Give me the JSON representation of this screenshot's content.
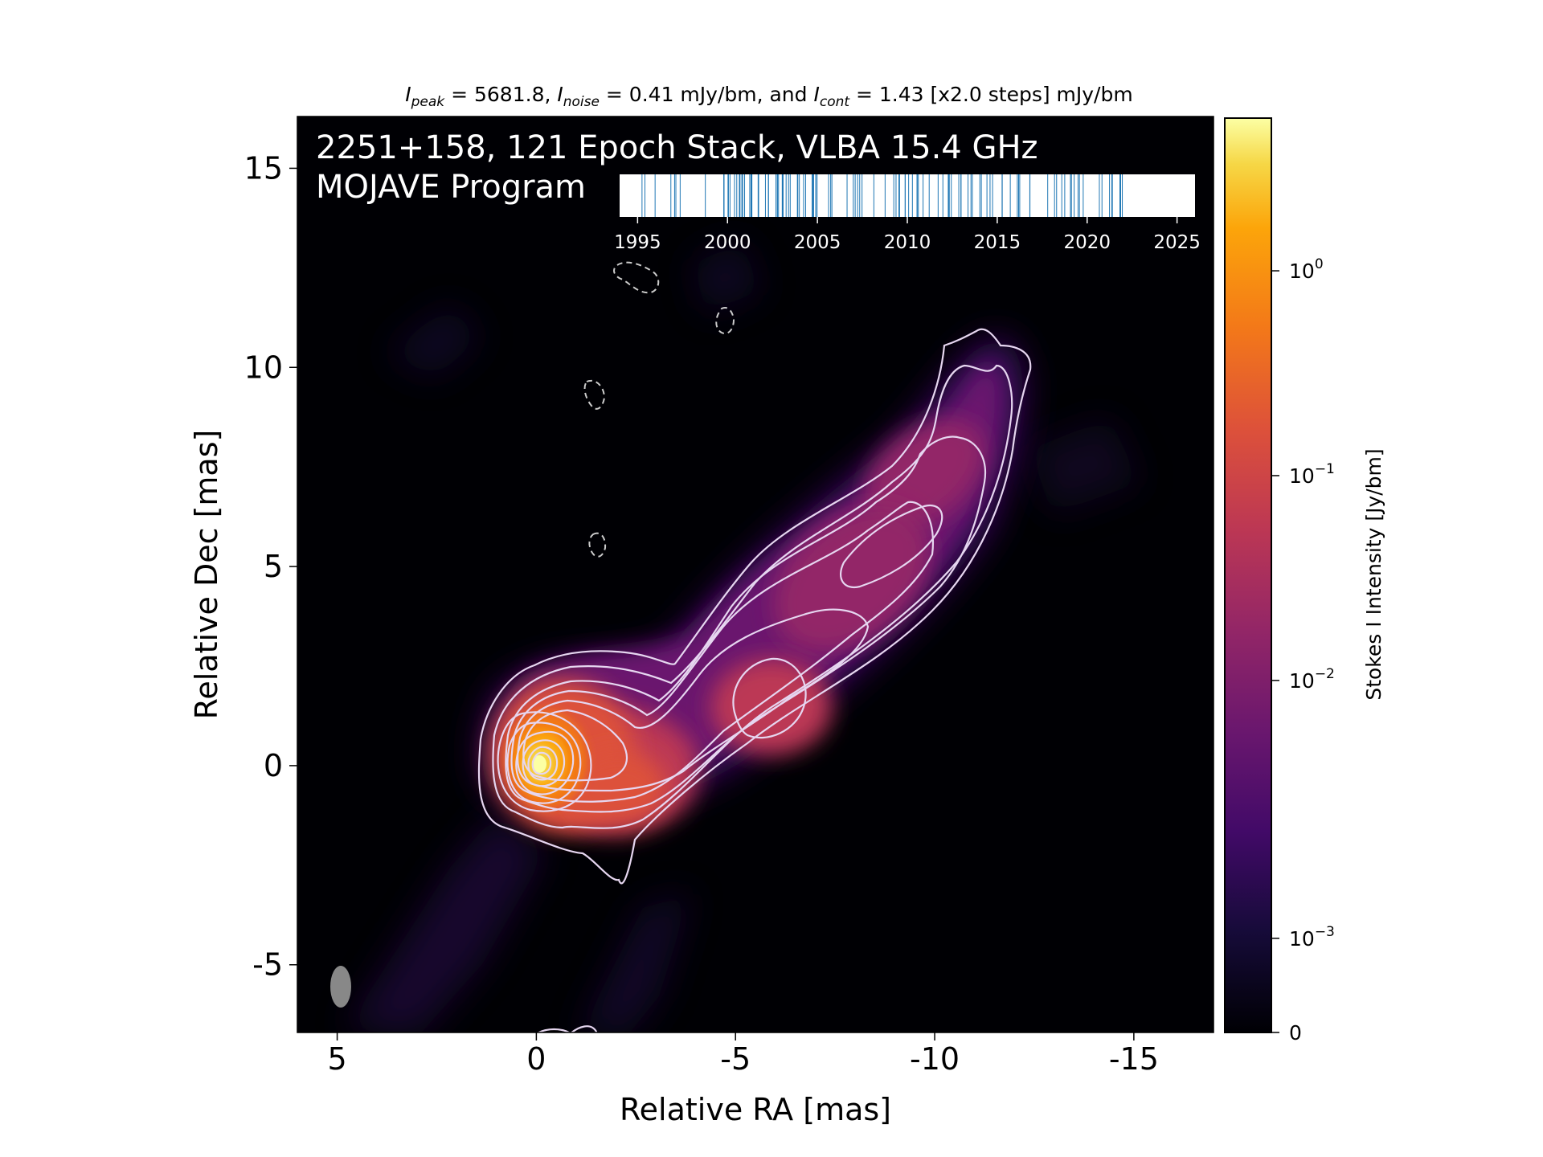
{
  "chart_data": {
    "type": "heatmap",
    "header": {
      "peak_sym": "I",
      "peak_sub": "peak",
      "peak_text": " = 5681.8, ",
      "noise_sym": "I",
      "noise_sub": "noise",
      "noise_text": " = 0.41 mJy/bm, and ",
      "cont_sym": "I",
      "cont_sub": "cont",
      "cont_text": " = 1.43 [x2.0 steps] mJy/bm"
    },
    "title_line1": "2251+158, 121 Epoch Stack, VLBA 15.4 GHz",
    "title_line2": "MOJAVE Program",
    "xlabel": "Relative RA [mas]",
    "ylabel": "Relative Dec [mas]",
    "xlim": [
      6.0,
      -17.0
    ],
    "ylim": [
      -6.7,
      16.3
    ],
    "xticks": [
      5,
      0,
      -5,
      -10,
      -15
    ],
    "xtick_labels": [
      "5",
      "0",
      "-5",
      "-10",
      "-15"
    ],
    "yticks": [
      -5,
      0,
      5,
      10,
      15
    ],
    "ytick_labels": [
      "-5",
      "0",
      "5",
      "10",
      "15"
    ],
    "colorbar": {
      "label": "Stokes I Intensity [Jy/bm]",
      "scale": "symlog",
      "ticks": [
        {
          "value": 0,
          "base": "0",
          "exp": ""
        },
        {
          "value": 0.001,
          "base": "10",
          "exp": "−3"
        },
        {
          "value": 0.01,
          "base": "10",
          "exp": "−2"
        },
        {
          "value": 0.1,
          "base": "10",
          "exp": "−1"
        },
        {
          "value": 1,
          "base": "10",
          "exp": "0"
        }
      ],
      "colormap": "inferno"
    },
    "epoch_timeline": {
      "range": [
        1994,
        2026
      ],
      "ticks": [
        1995,
        2000,
        2005,
        2010,
        2015,
        2020,
        2025
      ],
      "tick_labels": [
        "1995",
        "2000",
        "2005",
        "2010",
        "2015",
        "2020",
        "2025"
      ],
      "line_color": "#1f77b4"
    },
    "components": [
      {
        "x": 0.1,
        "y": 0.0,
        "peak": 5.68
      },
      {
        "x": -2.2,
        "y": -0.5,
        "peak": 0.05
      },
      {
        "x": -6.0,
        "y": 1.0,
        "peak": 0.06
      },
      {
        "x": -8.5,
        "y": 4.0,
        "peak": 0.02
      },
      {
        "x": -11.0,
        "y": 8.5,
        "peak": 0.006
      }
    ],
    "beam": {
      "x": 4.8,
      "y": -5.5,
      "major_mas": 1.1,
      "minor_mas": 0.55,
      "pa_deg": 0,
      "color": "#888888"
    },
    "contour_color": "#e6d6f0",
    "negative_contour_color": "#cccccc"
  }
}
